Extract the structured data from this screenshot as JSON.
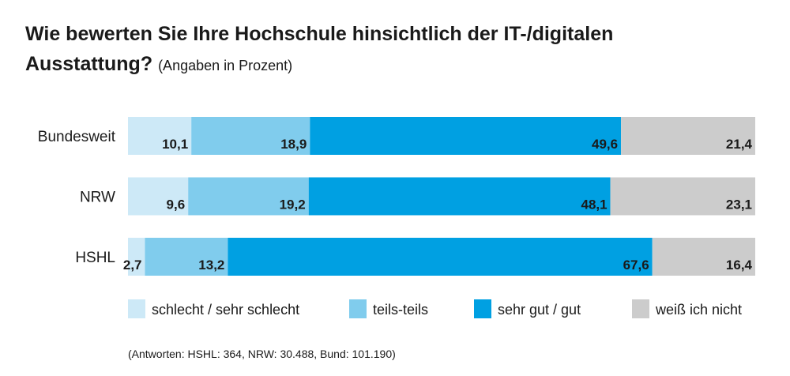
{
  "title": "Wie bewerten Sie Ihre Hochschule hinsichtlich der IT-/digitalen Ausstattung?",
  "subtitle": "(Angaben in Prozent)",
  "footnote": "(Antworten: HSHL: 364, NRW: 30.488, Bund: 101.190)",
  "chart_data": {
    "type": "bar",
    "orientation": "horizontal",
    "stacked": true,
    "title": "Wie bewerten Sie Ihre Hochschule hinsichtlich der IT-/digitalen Ausstattung?",
    "subtitle": "(Angaben in Prozent)",
    "categories": [
      "Bundesweit",
      "NRW",
      "HSHL"
    ],
    "series": [
      {
        "name": "schlecht / sehr schlecht",
        "values": [
          10.1,
          9.6,
          2.7
        ],
        "labels": [
          "10,1",
          "9,6",
          "2,7"
        ],
        "color": "#cde9f7"
      },
      {
        "name": "teils-teils",
        "values": [
          18.9,
          19.2,
          13.2
        ],
        "labels": [
          "18,9",
          "19,2",
          "13,2"
        ],
        "color": "#80cced"
      },
      {
        "name": "sehr gut / gut",
        "values": [
          49.6,
          48.1,
          67.6
        ],
        "labels": [
          "49,6",
          "48,1",
          "67,6"
        ],
        "color": "#00a0e2"
      },
      {
        "name": "weiß ich nicht",
        "values": [
          21.4,
          23.1,
          16.4
        ],
        "labels": [
          "21,4",
          "23,1",
          "16,4"
        ],
        "color": "#cccccc"
      }
    ],
    "xlim": [
      0,
      100
    ],
    "grid": false,
    "legend": "bottom"
  }
}
